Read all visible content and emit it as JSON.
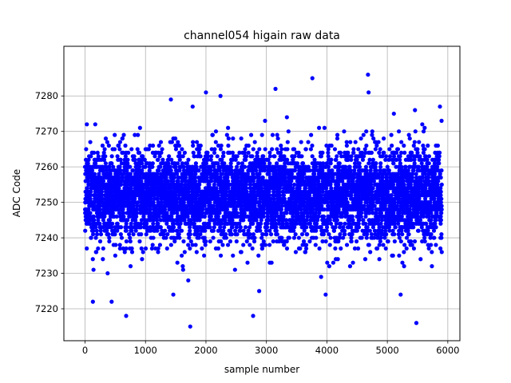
{
  "chart_data": {
    "type": "scatter",
    "title": "channel054 higain raw data",
    "xlabel": "sample number",
    "ylabel": "ADC Code",
    "xlim": [
      -350,
      6200
    ],
    "ylim": [
      7211,
      7294
    ],
    "xticks": [
      0,
      1000,
      2000,
      3000,
      4000,
      5000,
      6000
    ],
    "yticks": [
      7220,
      7230,
      7240,
      7250,
      7260,
      7270,
      7280
    ],
    "grid": true,
    "marker_color": "#0000ff",
    "marker": "circle",
    "series": [
      {
        "n_points": 5900,
        "x_range": [
          0,
          5900
        ],
        "mean": 7252,
        "typical_range": [
          7232,
          7272
        ],
        "outliers": [
          {
            "x": 30,
            "y": 7272
          },
          {
            "x": 130,
            "y": 7222
          },
          {
            "x": 440,
            "y": 7222
          },
          {
            "x": 680,
            "y": 7218
          },
          {
            "x": 1420,
            "y": 7279
          },
          {
            "x": 1460,
            "y": 7224
          },
          {
            "x": 1740,
            "y": 7215
          },
          {
            "x": 1780,
            "y": 7277
          },
          {
            "x": 2000,
            "y": 7281
          },
          {
            "x": 2240,
            "y": 7280
          },
          {
            "x": 2780,
            "y": 7218
          },
          {
            "x": 2880,
            "y": 7225
          },
          {
            "x": 3150,
            "y": 7282
          },
          {
            "x": 3760,
            "y": 7285
          },
          {
            "x": 3980,
            "y": 7224
          },
          {
            "x": 4680,
            "y": 7286
          },
          {
            "x": 4690,
            "y": 7281
          },
          {
            "x": 5220,
            "y": 7224
          },
          {
            "x": 5480,
            "y": 7216
          },
          {
            "x": 5870,
            "y": 7277
          },
          {
            "x": 5900,
            "y": 7236
          }
        ]
      }
    ]
  }
}
